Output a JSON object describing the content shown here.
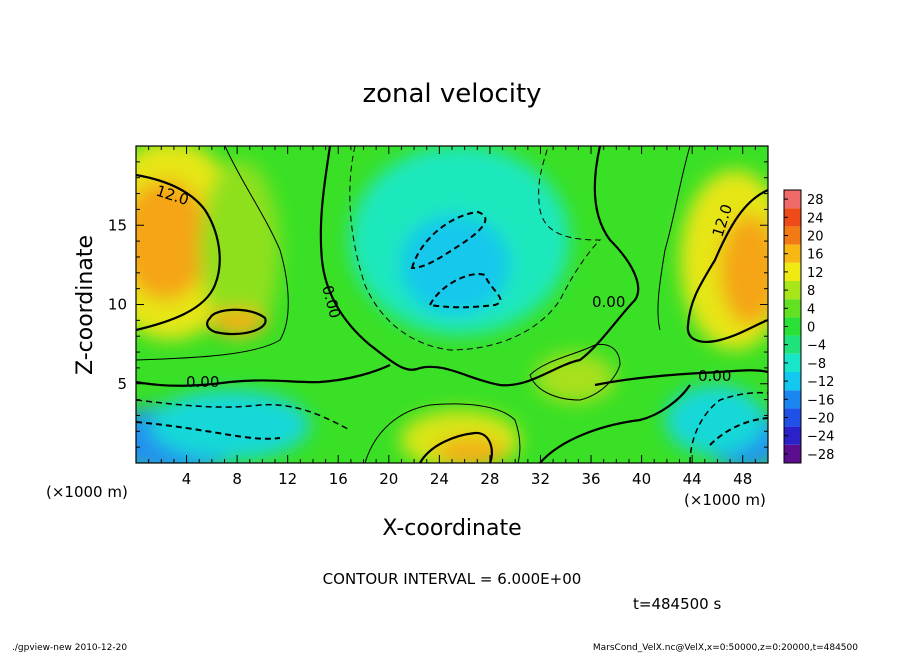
{
  "chart_data": {
    "type": "heatmap",
    "title": "zonal velocity",
    "xlabel": "X-coordinate",
    "ylabel": "Z-coordinate",
    "x_unit": "(×1000 m)",
    "y_unit": "(×1000 m)",
    "xlim": [
      0,
      50
    ],
    "ylim": [
      0,
      20
    ],
    "x_ticks": [
      4,
      8,
      12,
      16,
      20,
      24,
      28,
      32,
      36,
      40,
      44,
      48
    ],
    "y_ticks": [
      5,
      10,
      15
    ],
    "colorbar": {
      "levels": [
        -28,
        -24,
        -20,
        -16,
        -12,
        -8,
        -4,
        0,
        4,
        8,
        12,
        16,
        20,
        24,
        28
      ],
      "labels": [
        "28",
        "24",
        "20",
        "16",
        "12",
        "8",
        "4",
        "0",
        "−4",
        "−8",
        "−12",
        "−16",
        "−20",
        "−24",
        "−28"
      ],
      "colors": [
        "#5b0f8f",
        "#2a22c8",
        "#1f50e8",
        "#1a86f0",
        "#12c8ee",
        "#18e6c8",
        "#1fe27a",
        "#28e036",
        "#62e022",
        "#a8e61a",
        "#eeea12",
        "#f7b814",
        "#f27a14",
        "#ee4a1a",
        "#f06a6a"
      ]
    },
    "contour_labels": [
      "12.0",
      "12.0",
      "0.00",
      "0.00",
      "0.00",
      "0.00"
    ],
    "contour_interval_text": "CONTOUR INTERVAL = 6.000E+00",
    "time_text": "t=484500  s",
    "footer_left": "./gpview-new  2010-12-20",
    "footer_right": "MarsCond_VelX.nc@VelX,x=0:50000,z=0:20000,t=484500"
  }
}
